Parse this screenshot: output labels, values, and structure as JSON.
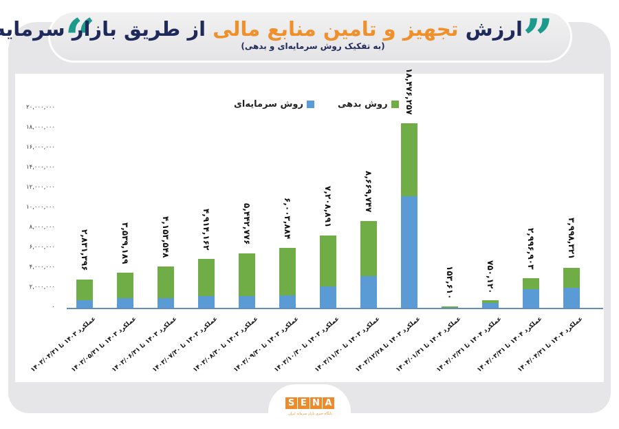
{
  "header": {
    "title_part1": "ارزش ",
    "title_highlight": "تجهیز و تامین منابع مالی",
    "title_part2": " از طریق بازار سرمایه",
    "subtitle": "(به تفکیک روش سرمایه‌ای و بدهی)",
    "quote_left": "“",
    "quote_right": "”"
  },
  "colors": {
    "equity": "#5b9bd5",
    "debt": "#70ad47",
    "title": "#1f2a5a",
    "highlight": "#f0902b",
    "quote": "#1d9a8c",
    "brand": "#ee8a2c"
  },
  "legend": {
    "debt": "روش بدهی",
    "equity": "روش سرمایه‌ای"
  },
  "brand": {
    "letters": [
      "S",
      "E",
      "N",
      "A"
    ],
    "tagline": "پایگاه خبری بازار سرمایه ایران"
  },
  "chart_data": {
    "type": "bar",
    "stacked": true,
    "title": "ارزش تجهیز و تامین منابع مالی از طریق بازار سرمایه",
    "subtitle": "(به تفکیک روش سرمایه‌ای و بدهی)",
    "xlabel": "",
    "ylabel": "",
    "ylim": [
      0,
      20000000
    ],
    "grid": false,
    "legend_position": "top",
    "yticks": [
      "۰",
      "۲,۰۰۰,۰۰۰",
      "۴,۰۰۰,۰۰۰",
      "۶,۰۰۰,۰۰۰",
      "۸,۰۰۰,۰۰۰",
      "۱۰,۰۰۰,۰۰۰",
      "۱۲,۰۰۰,۰۰۰",
      "۱۴,۰۰۰,۰۰۰",
      "۱۶,۰۰۰,۰۰۰",
      "۱۸,۰۰۰,۰۰۰",
      "۲۰,۰۰۰,۰۰۰"
    ],
    "categories": [
      "عملکرد ۱۴۰۳ تا ۱۴۰۳/۰۴/۳۱",
      "عملکرد ۱۴۰۳ تا ۱۴۰۳/۰۵/۳۱",
      "عملکرد ۱۴۰۳ تا ۱۴۰۳/۰۶/۳۱",
      "عملکرد ۱۴۰۳ تا ۱۴۰۳/۰۷/۳۰",
      "عملکرد ۱۴۰۳ تا ۱۴۰۳/۰۸/۳۰",
      "عملکرد ۱۴۰۳ تا ۱۴۰۳/۰۹/۳۰",
      "عملکرد ۱۴۰۳ تا ۱۴۰۳/۱۰/۳۰",
      "عملکرد ۱۴۰۳ تا ۱۴۰۳/۱۱/۳۰",
      "عملکرد ۱۴۰۳ تا ۱۴۰۳/۱۲/۲۸",
      "عملکرد ۱۴۰۴ تا ۱۴۰۴/۰۱/۳۱",
      "عملکرد ۱۴۰۴ تا ۱۴۰۴/۰۲/۳۱",
      "عملکرد ۱۴۰۴ تا ۱۴۰۴/۰۳/۳۱",
      "عملکرد ۱۴۰۴ تا ۱۴۰۴/۰۴/۳۱"
    ],
    "totals": [
      2831396,
      3539189,
      4153548,
      4914162,
      5442776,
      6003884,
      7208891,
      8669747,
      18476257,
      153610,
      750120,
      2996903,
      3998321
    ],
    "total_labels": [
      "۲,۸۳۱,۳۹۶",
      "۳,۵۳۹,۱۸۹",
      "۴,۱۵۳,۵۴۸",
      "۴,۹۱۴,۱۶۲",
      "۵,۴۴۲,۷۷۶",
      "۶,۰۰۳,۸۸۴",
      "۷,۲۰۸,۸۹۱",
      "۸,۶۶۹,۷۴۷",
      "۱۸,۴۷۶,۲۵۷",
      "۱۵۳,۶۱۰",
      "۷۵۰,۱۲۰",
      "۲,۹۹۶,۹۰۳",
      "۳,۹۹۸,۳۲۱"
    ],
    "series_note": "Segment values are estimated from bar geometry; only totals are labeled in the image.",
    "series": [
      {
        "name": "روش سرمایه‌ای",
        "color": "#5b9bd5",
        "estimated": true,
        "values": [
          750000,
          950000,
          950000,
          1150000,
          1150000,
          1250000,
          2150000,
          3150000,
          11200000,
          0,
          450000,
          1850000,
          2000000
        ]
      },
      {
        "name": "روش بدهی",
        "color": "#70ad47",
        "estimated": true,
        "values": [
          2081396,
          2589189,
          3203548,
          3764162,
          4292776,
          4753884,
          5058891,
          5519747,
          7276257,
          153610,
          300120,
          1146903,
          1998321
        ]
      }
    ]
  }
}
